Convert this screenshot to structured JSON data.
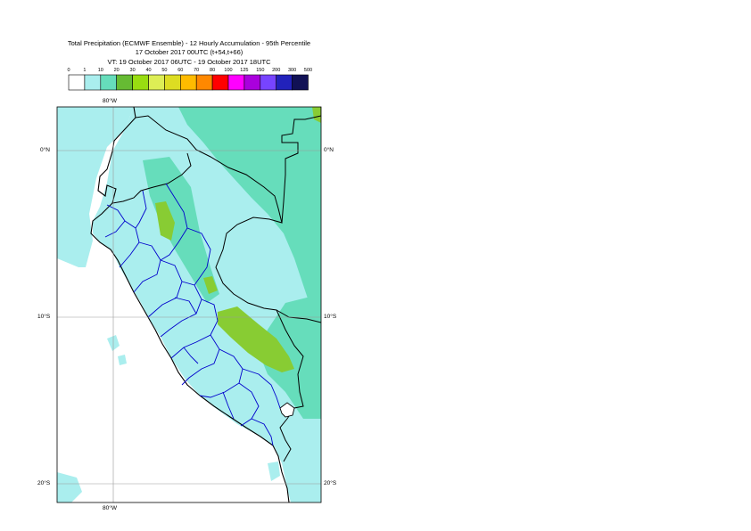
{
  "title": {
    "line1": "Total Precipitation (ECMWF Ensemble) - 12 Hourly Accumulation - 95th Percentile",
    "line2": "17 October 2017 00UTC (t+54,t+66)",
    "line3": "VT: 19 October 2017 06UTC - 19 October 2017 18UTC"
  },
  "legend": {
    "thresholds": [
      "0",
      "1",
      "10",
      "20",
      "30",
      "40",
      "50",
      "60",
      "70",
      "80",
      "100",
      "125",
      "150",
      "200",
      "300",
      "500"
    ],
    "colors": [
      "#ffffff",
      "#aaeeee",
      "#66ddbb",
      "#66bb33",
      "#99dd11",
      "#ddee55",
      "#dddd22",
      "#ffbb00",
      "#ff8800",
      "#ff0000",
      "#ff00ff",
      "#aa00dd",
      "#7744ff",
      "#2222bb",
      "#111155"
    ]
  },
  "map": {
    "labels": {
      "lon_top": "80°W",
      "lon_bottom": "80°W",
      "lat_0_left": "0°N",
      "lat_0_right": "0°N",
      "lat_10_left": "10°S",
      "lat_10_right": "10°S",
      "lat_20_left": "20°S",
      "lat_20_right": "20°S"
    },
    "colors": {
      "ocean": "#ffffff",
      "light": "#aaeeee",
      "medium": "#66ddbb",
      "heavy": "#88cc33",
      "country_border": "#000000",
      "region_border": "#0000cc"
    }
  }
}
